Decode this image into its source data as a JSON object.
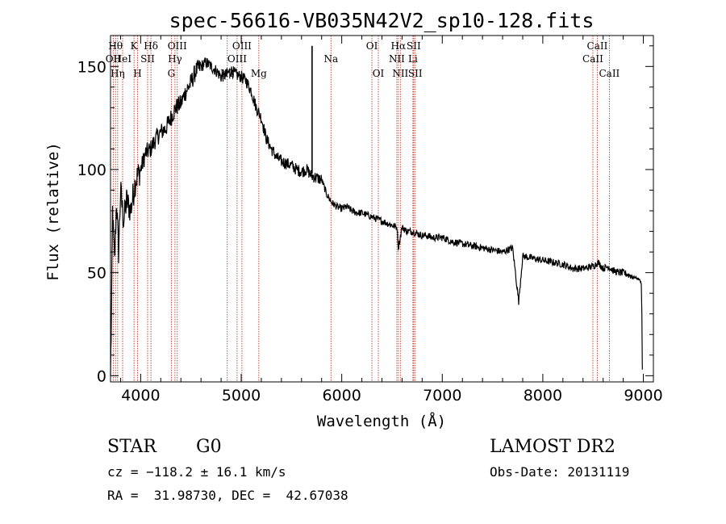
{
  "chart_data": {
    "type": "line",
    "title": "spec-56616-VB035N42V2_sp10-128.fits",
    "xlabel": "Wavelength (Å)",
    "ylabel": "Flux (relative)",
    "xlim": [
      3700,
      9100
    ],
    "ylim": [
      -3,
      165
    ],
    "x_ticks": [
      4000,
      5000,
      6000,
      7000,
      8000,
      9000
    ],
    "y_ticks": [
      0,
      50,
      100,
      150
    ],
    "x_tick_labels": [
      "4000",
      "5000",
      "6000",
      "7000",
      "8000",
      "9000"
    ],
    "y_tick_labels": [
      "0",
      "50",
      "100",
      "150"
    ],
    "grid": false,
    "series": [
      {
        "name": "",
        "x": [
          3700,
          3710,
          3720,
          3740,
          3760,
          3780,
          3800,
          3830,
          3860,
          3900,
          3950,
          4000,
          4050,
          4100,
          4150,
          4200,
          4250,
          4300,
          4350,
          4400,
          4450,
          4500,
          4550,
          4600,
          4650,
          4700,
          4750,
          4800,
          4850,
          4900,
          4950,
          5000,
          5050,
          5100,
          5150,
          5200,
          5250,
          5300,
          5350,
          5400,
          5450,
          5500,
          5550,
          5600,
          5650,
          5700,
          5750,
          5800,
          5850,
          5900,
          5950,
          6000,
          6050,
          6100,
          6150,
          6200,
          6250,
          6300,
          6350,
          6400,
          6450,
          6500,
          6550,
          6563,
          6600,
          6650,
          6700,
          6750,
          6800,
          6850,
          6900,
          6950,
          7000,
          7100,
          7200,
          7300,
          7400,
          7500,
          7600,
          7700,
          7760,
          7800,
          7900,
          8000,
          8100,
          8200,
          8300,
          8400,
          8500,
          8550,
          8600,
          8650,
          8700,
          8750,
          8800,
          8850,
          8900,
          8950,
          8970,
          8980,
          8985,
          8990
        ],
        "values": [
          0,
          30,
          80,
          55,
          85,
          60,
          90,
          75,
          85,
          80,
          95,
          100,
          108,
          110,
          115,
          118,
          120,
          125,
          130,
          132,
          138,
          142,
          148,
          150,
          152,
          150,
          148,
          145,
          146,
          148,
          146,
          145,
          143,
          138,
          130,
          125,
          115,
          110,
          106,
          104,
          103,
          102,
          100,
          99,
          100,
          97,
          96,
          95,
          88,
          84,
          82,
          81,
          82,
          80,
          79,
          79,
          78,
          77,
          76,
          75,
          74,
          73,
          72,
          62,
          72,
          70,
          70,
          69,
          68,
          68,
          67,
          67,
          67,
          65,
          64,
          63,
          62,
          61,
          60,
          62,
          36,
          58,
          57,
          56,
          55,
          54,
          52,
          52,
          53,
          55,
          52,
          53,
          51,
          50,
          50,
          49,
          48,
          47,
          46,
          45,
          30,
          3
        ]
      }
    ],
    "spikes": [
      {
        "x": 5705,
        "y": 160
      }
    ],
    "line_markers": [
      {
        "label": "OII",
        "x": 3727,
        "row": 2
      },
      {
        "label": "Hθ",
        "x": 3750,
        "row": 1
      },
      {
        "label": "Hη",
        "x": 3771,
        "row": 3
      },
      {
        "label": "HeI",
        "x": 3820,
        "row": 2
      },
      {
        "label": "K",
        "x": 3934,
        "row": 1
      },
      {
        "label": "SII",
        "x": 4069,
        "row": 2
      },
      {
        "label": "H",
        "x": 3969,
        "row": 3
      },
      {
        "label": "Hδ",
        "x": 4102,
        "row": 1
      },
      {
        "label": "OIII",
        "x": 4364,
        "row": 1
      },
      {
        "label": "Hγ",
        "x": 4341,
        "row": 2
      },
      {
        "label": "G",
        "x": 4305,
        "row": 3
      },
      {
        "label": "OIII",
        "x": 5007,
        "row": 1
      },
      {
        "label": "OIII",
        "x": 4959,
        "row": 2
      },
      {
        "label": "Hβ",
        "x": 4861,
        "row": 3
      },
      {
        "label": "Mg",
        "x": 5175,
        "row": 3
      },
      {
        "label": "Na",
        "x": 5893,
        "row": 2
      },
      {
        "label": "OI",
        "x": 6300,
        "row": 1
      },
      {
        "label": "OI",
        "x": 6364,
        "row": 3
      },
      {
        "label": "Hα",
        "x": 6563,
        "row": 1
      },
      {
        "label": "SII",
        "x": 6716,
        "row": 1
      },
      {
        "label": "NII",
        "x": 6548,
        "row": 2
      },
      {
        "label": "Li",
        "x": 6708,
        "row": 2
      },
      {
        "label": "NII",
        "x": 6583,
        "row": 3
      },
      {
        "label": "SII",
        "x": 6731,
        "row": 3
      },
      {
        "label": "CaII",
        "x": 8542,
        "row": 1
      },
      {
        "label": "CaII",
        "x": 8498,
        "row": 2
      },
      {
        "label": "CaII",
        "x": 8662,
        "row": 3
      }
    ],
    "marker_color": "#c0392b"
  },
  "info": {
    "class": "STAR",
    "subclass": "G0",
    "survey": "LAMOST DR2",
    "cz": "cz = −118.2 ± 16.1 km/s",
    "obs_date": "Obs-Date: 20131119",
    "radec": "RA =  31.98730, DEC =  42.67038"
  }
}
